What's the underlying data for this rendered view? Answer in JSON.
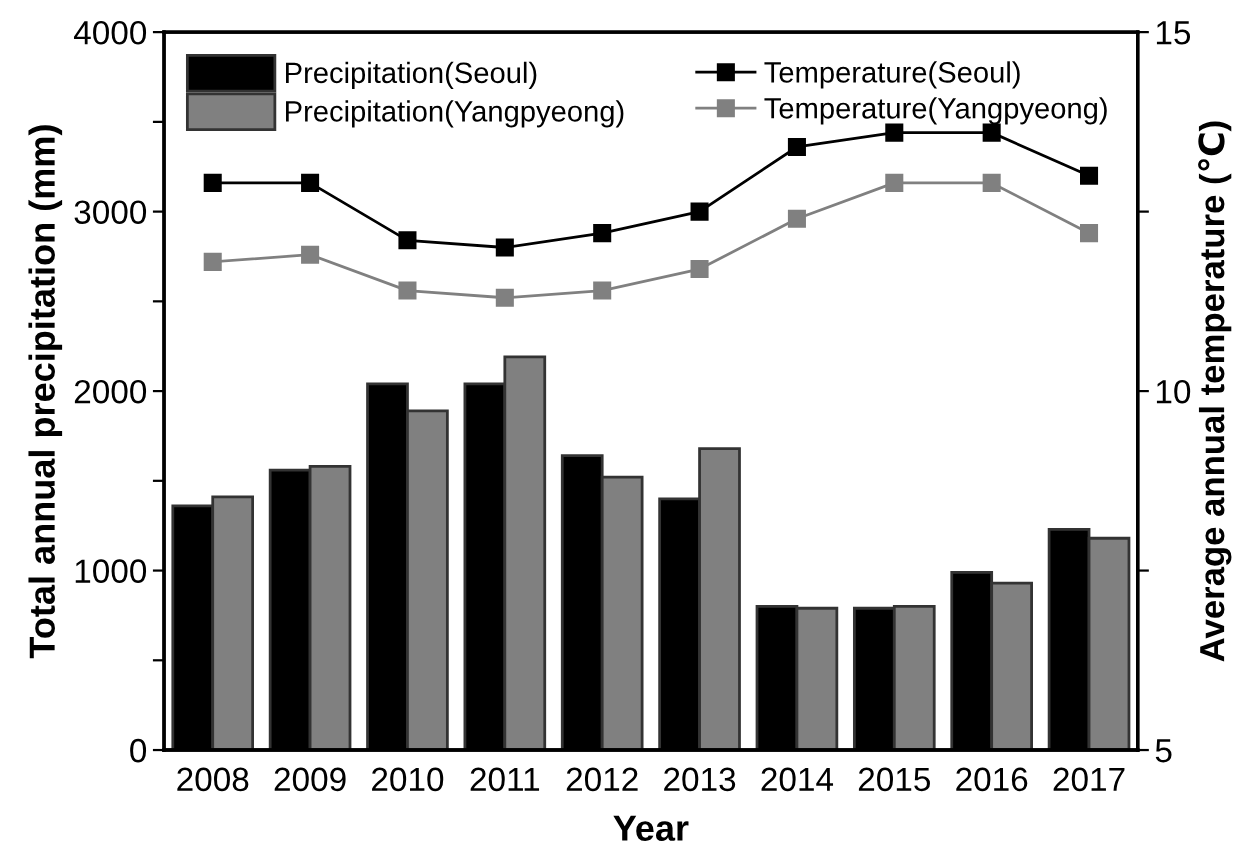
{
  "chart_data": {
    "type": "bar",
    "xlabel": "Year",
    "ylabel": "Total annual precipitation (mm)",
    "y2label": "Average annual temperature (℃)",
    "categories": [
      "2008",
      "2009",
      "2010",
      "2011",
      "2012",
      "2013",
      "2014",
      "2015",
      "2016",
      "2017"
    ],
    "series": [
      {
        "name": "Precipitation(Seoul)",
        "color": "#000000",
        "values": [
          1360,
          1560,
          2040,
          2040,
          1640,
          1400,
          800,
          790,
          990,
          1230
        ]
      },
      {
        "name": "Precipitation(Yangpyeong)",
        "color": "#808080",
        "values": [
          1410,
          1580,
          1890,
          2190,
          1520,
          1680,
          790,
          800,
          930,
          1180
        ]
      },
      {
        "name": "Temperature(Seoul)",
        "type": "line",
        "axis": "y2",
        "color": "#000000",
        "values": [
          12.9,
          12.9,
          12.1,
          12.0,
          12.2,
          12.5,
          13.4,
          13.6,
          13.6,
          13.0
        ]
      },
      {
        "name": "Temperature(Yangpyeong)",
        "type": "line",
        "axis": "y2",
        "color": "#808080",
        "values": [
          11.8,
          11.9,
          11.4,
          11.3,
          11.4,
          11.7,
          12.4,
          12.9,
          12.9,
          12.2
        ]
      }
    ],
    "ylim": [
      0,
      4000
    ],
    "yticks": [
      0,
      {
        "value": 500,
        "label": null
      },
      1000,
      {
        "value": 1500,
        "label": null
      },
      2000,
      {
        "value": 2500,
        "label": null
      },
      3000,
      {
        "value": 3500,
        "label": null
      },
      4000
    ],
    "y2lim": [
      5,
      15
    ],
    "y2ticks": [
      5,
      {
        "value": 7.5,
        "label": null
      },
      10,
      {
        "value": 12.5,
        "label": null
      },
      15
    ],
    "marker": "square",
    "line_style": "solid",
    "legend": "top",
    "grid": false
  }
}
